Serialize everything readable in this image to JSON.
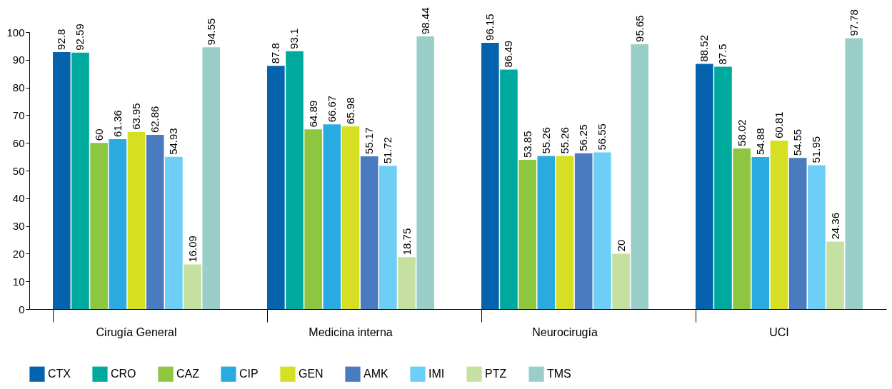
{
  "chart_data": {
    "type": "bar",
    "categories": [
      "Cirugía General",
      "Medicina interna",
      "Neurocirugía",
      "UCI"
    ],
    "series": [
      {
        "name": "CTX",
        "color": "#0563ae",
        "values": [
          92.8,
          87.8,
          96.15,
          88.52
        ]
      },
      {
        "name": "CRO",
        "color": "#00a99d",
        "values": [
          92.59,
          93.1,
          86.49,
          87.5
        ]
      },
      {
        "name": "CAZ",
        "color": "#8dc63f",
        "values": [
          60,
          64.89,
          53.85,
          58.02
        ]
      },
      {
        "name": "CIP",
        "color": "#29abe2",
        "values": [
          61.36,
          66.67,
          55.26,
          54.88
        ]
      },
      {
        "name": "GEN",
        "color": "#d7df23",
        "values": [
          63.95,
          65.98,
          55.26,
          60.81
        ]
      },
      {
        "name": "AMK",
        "color": "#4a7bc0",
        "values": [
          62.86,
          55.17,
          56.25,
          54.55
        ]
      },
      {
        "name": "IMI",
        "color": "#6dcff6",
        "values": [
          54.93,
          51.72,
          56.55,
          51.95
        ]
      },
      {
        "name": "PTZ",
        "color": "#c5e0a0",
        "values": [
          16.09,
          18.75,
          20,
          24.36
        ]
      },
      {
        "name": "TMS",
        "color": "#99cfc8",
        "values": [
          94.55,
          98.44,
          95.65,
          97.78
        ]
      }
    ],
    "ylim": [
      0,
      100
    ],
    "yticks": [
      0,
      10,
      20,
      30,
      40,
      50,
      60,
      70,
      80,
      90,
      100
    ],
    "grid": false,
    "legend": "bottom",
    "data_labels": true
  }
}
